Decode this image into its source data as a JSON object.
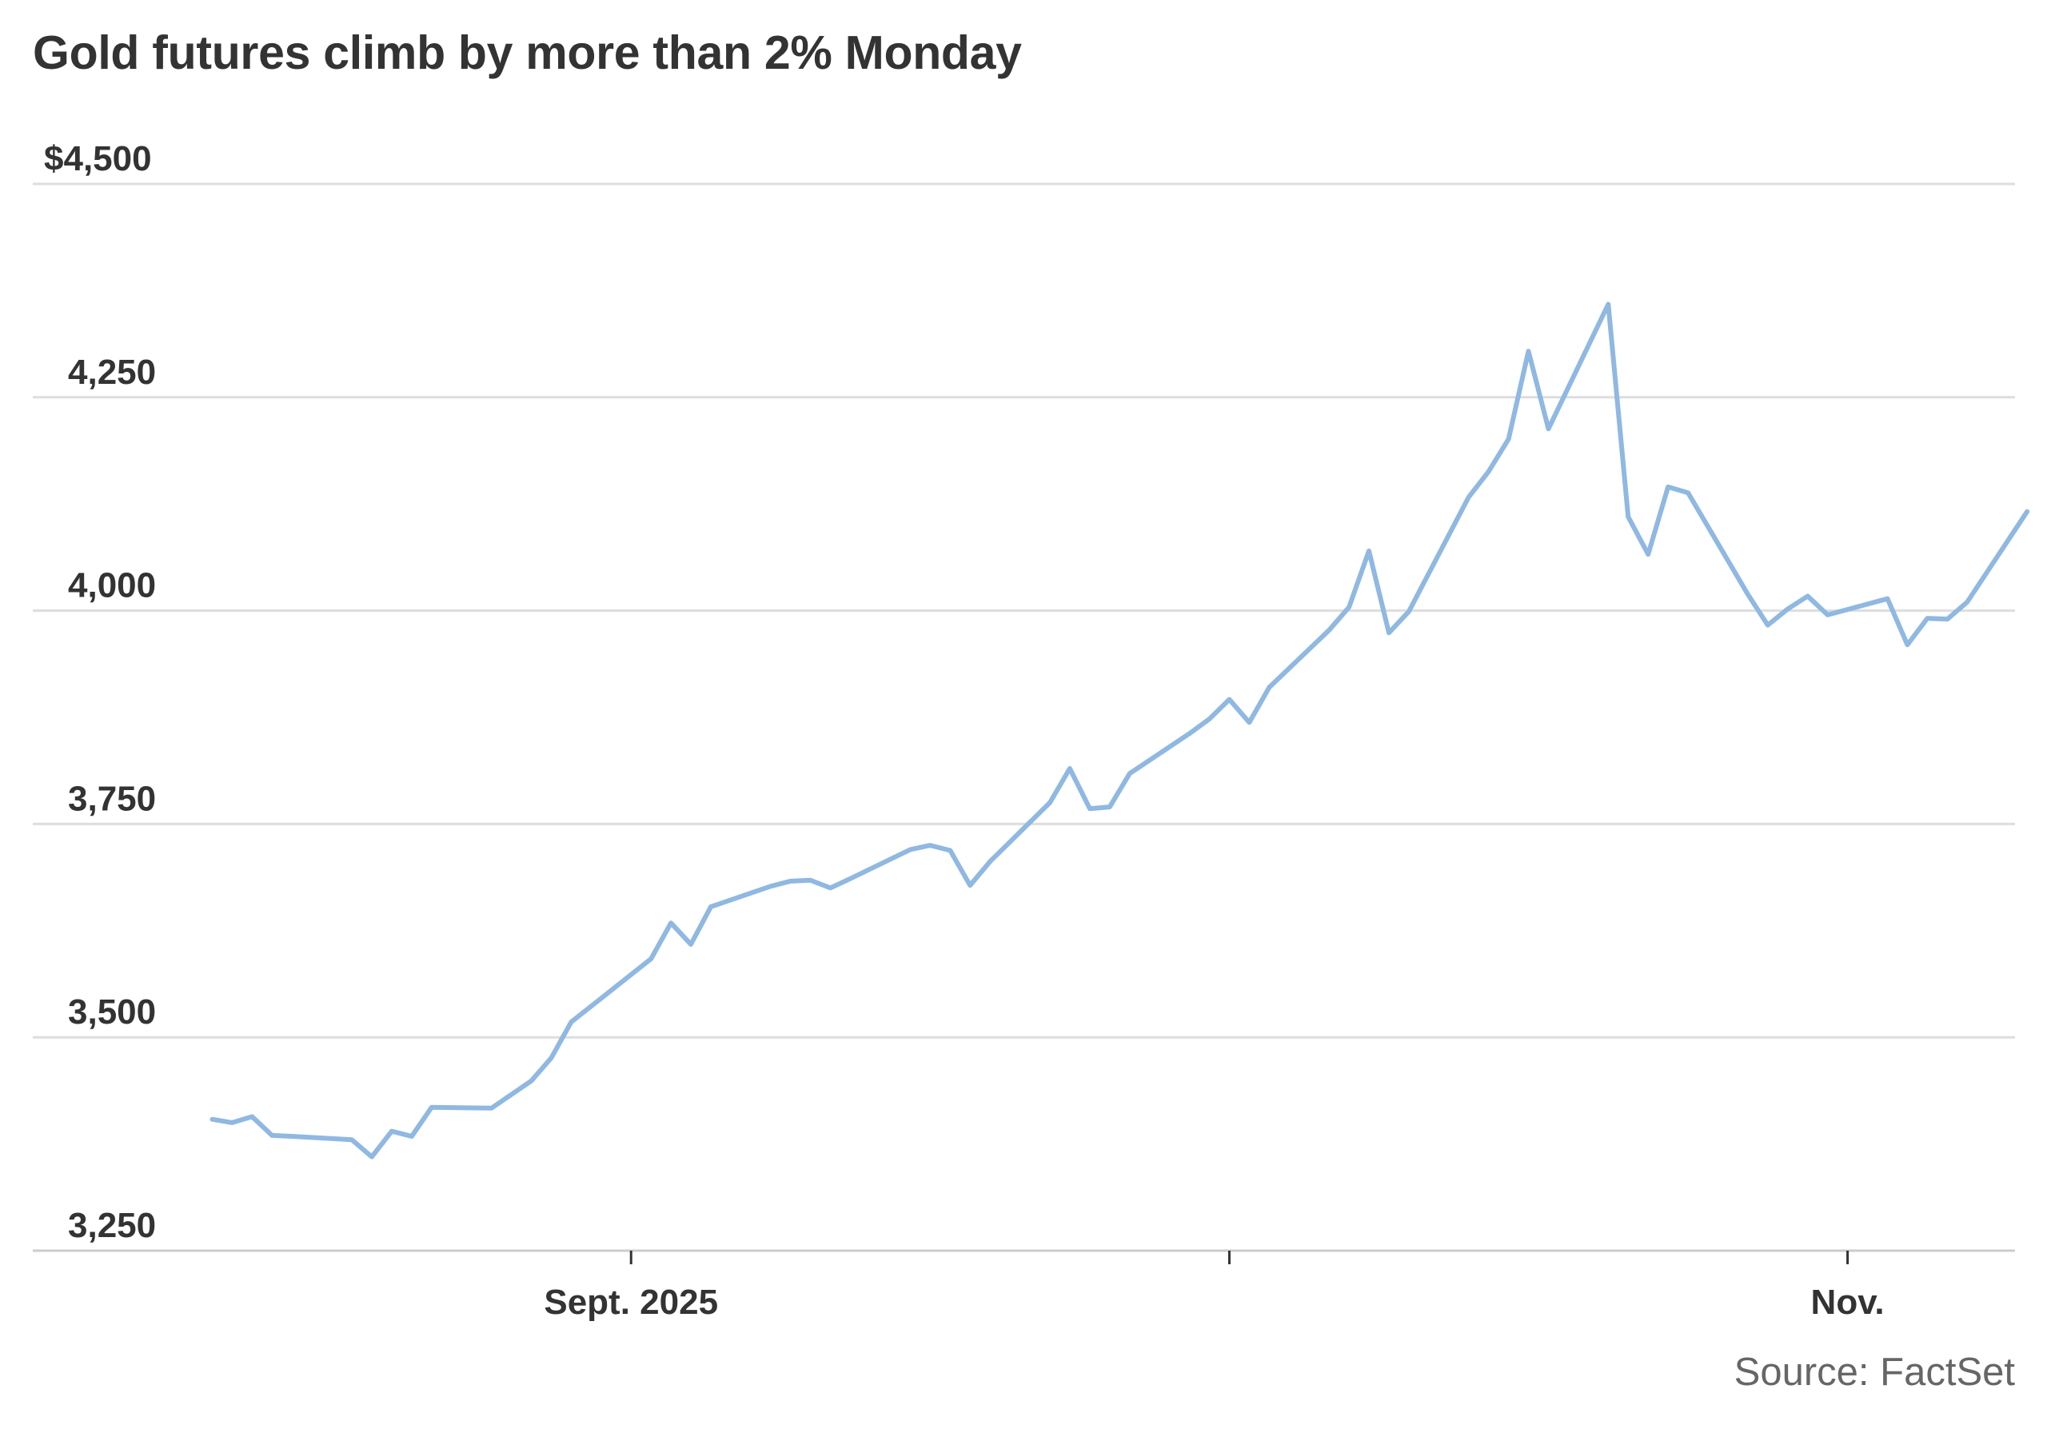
{
  "chart_data": {
    "type": "line",
    "title": "Gold futures climb by more than 2% Monday",
    "xlabel": "",
    "ylabel": "",
    "ylim": [
      3250,
      4500
    ],
    "y_ticks": [
      3250,
      3500,
      3750,
      4000,
      4250,
      4500
    ],
    "y_tick_labels": [
      "3,250",
      "3,500",
      "3,750",
      "4,000",
      "4,250",
      "$4,500"
    ],
    "x_ticks": [
      {
        "date": "2025-09-01",
        "label": "Sept. 2025"
      },
      {
        "date": "2025-10-01",
        "label": ""
      },
      {
        "date": "2025-11-01",
        "label": "Nov."
      }
    ],
    "x_range": [
      "2025-08-02",
      "2025-11-11"
    ],
    "grid": true,
    "series": [
      {
        "color": "#8fb8e2",
        "points": [
          [
            "2025-08-11",
            3404
          ],
          [
            "2025-08-12",
            3400
          ],
          [
            "2025-08-13",
            3407
          ],
          [
            "2025-08-14",
            3385
          ],
          [
            "2025-08-15",
            3384
          ],
          [
            "2025-08-18",
            3380
          ],
          [
            "2025-08-19",
            3360
          ],
          [
            "2025-08-20",
            3390
          ],
          [
            "2025-08-21",
            3384
          ],
          [
            "2025-08-22",
            3418
          ],
          [
            "2025-08-25",
            3417
          ],
          [
            "2025-08-26",
            3433
          ],
          [
            "2025-08-27",
            3449
          ],
          [
            "2025-08-28",
            3476
          ],
          [
            "2025-08-29",
            3518
          ],
          [
            "2025-09-02",
            3592
          ],
          [
            "2025-09-03",
            3634
          ],
          [
            "2025-09-04",
            3609
          ],
          [
            "2025-09-05",
            3653
          ],
          [
            "2025-09-08",
            3677
          ],
          [
            "2025-09-09",
            3683
          ],
          [
            "2025-09-10",
            3684
          ],
          [
            "2025-09-11",
            3675
          ],
          [
            "2025-09-12",
            3686
          ],
          [
            "2025-09-15",
            3720
          ],
          [
            "2025-09-16",
            3725
          ],
          [
            "2025-09-17",
            3719
          ],
          [
            "2025-09-18",
            3678
          ],
          [
            "2025-09-19",
            3706
          ],
          [
            "2025-09-22",
            3775
          ],
          [
            "2025-09-23",
            3815
          ],
          [
            "2025-09-24",
            3768
          ],
          [
            "2025-09-25",
            3770
          ],
          [
            "2025-09-26",
            3809
          ],
          [
            "2025-09-29",
            3856
          ],
          [
            "2025-09-30",
            3873
          ],
          [
            "2025-10-01",
            3896
          ],
          [
            "2025-10-02",
            3869
          ],
          [
            "2025-10-03",
            3910
          ],
          [
            "2025-10-06",
            3977
          ],
          [
            "2025-10-07",
            4004
          ],
          [
            "2025-10-08",
            4070
          ],
          [
            "2025-10-09",
            3974
          ],
          [
            "2025-10-10",
            3999
          ],
          [
            "2025-10-13",
            4133
          ],
          [
            "2025-10-14",
            4163
          ],
          [
            "2025-10-15",
            4201
          ],
          [
            "2025-10-16",
            4304
          ],
          [
            "2025-10-17",
            4213
          ],
          [
            "2025-10-20",
            4359
          ],
          [
            "2025-10-21",
            4110
          ],
          [
            "2025-10-22",
            4066
          ],
          [
            "2025-10-23",
            4145
          ],
          [
            "2025-10-24",
            4138
          ],
          [
            "2025-10-27",
            4019
          ],
          [
            "2025-10-28",
            3983
          ],
          [
            "2025-10-29",
            4002
          ],
          [
            "2025-10-30",
            4017
          ],
          [
            "2025-10-31",
            3995
          ],
          [
            "2025-11-03",
            4014
          ],
          [
            "2025-11-04",
            3960
          ],
          [
            "2025-11-05",
            3991
          ],
          [
            "2025-11-06",
            3990
          ],
          [
            "2025-11-07",
            4010
          ],
          [
            "2025-11-10",
            4116
          ]
        ]
      }
    ]
  },
  "source": "Source: FactSet"
}
